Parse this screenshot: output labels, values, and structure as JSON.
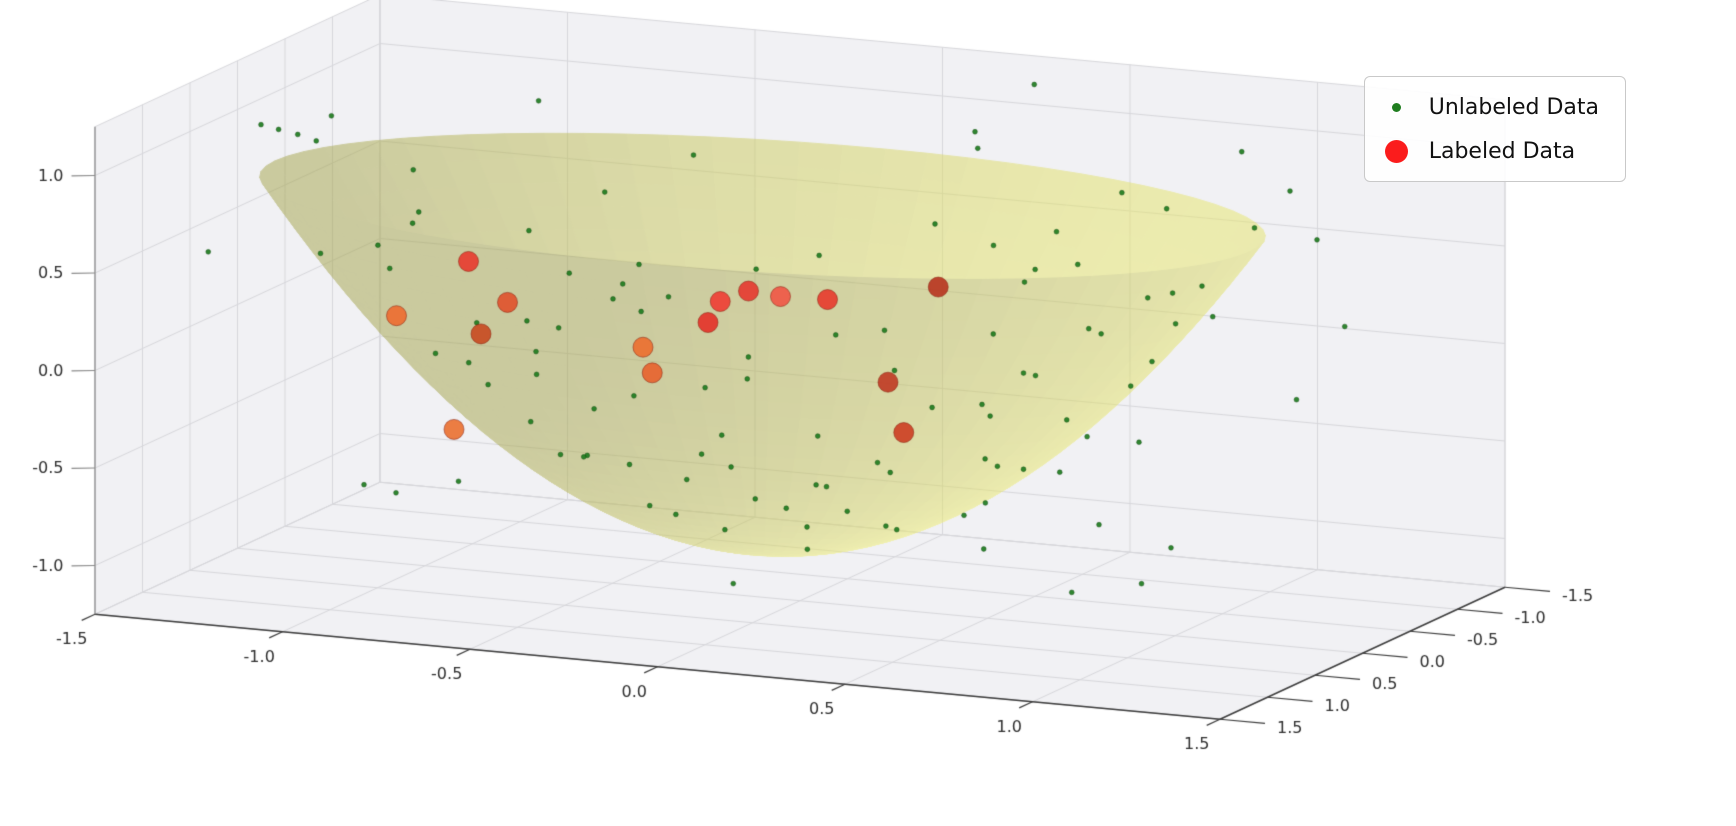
{
  "figure": {
    "background": "#ffffff",
    "pane_color": "#f1f1f4",
    "grid_color": "#d7d7db",
    "spine_color": "#3c3c3c",
    "tick_color": "#2e2e2e"
  },
  "legend": {
    "position": "upper right",
    "entries": [
      {
        "label": "Unlabeled Data",
        "color": "#1f7d1f",
        "marker": "small-dot"
      },
      {
        "label": "Labeled Data",
        "color": "#fb1c1c",
        "marker": "large-dot"
      }
    ]
  },
  "chart_data": {
    "type": "scatter",
    "projection": "3d",
    "title": "",
    "axes": {
      "x": {
        "range": [
          -1.5,
          1.5
        ],
        "ticks": [
          -1.5,
          -1.0,
          -0.5,
          0.0,
          0.5,
          1.0,
          1.5
        ]
      },
      "y": {
        "range": [
          -1.5,
          1.5
        ],
        "ticks": [
          -1.5,
          -1.0,
          -0.5,
          0.0,
          0.5,
          1.0,
          1.5
        ]
      },
      "z": {
        "range": [
          -1.25,
          1.25
        ],
        "ticks": [
          -1.0,
          -0.5,
          0.0,
          0.5,
          1.0
        ]
      }
    },
    "surface": {
      "type": "paraboloid",
      "formula": "z = a*((x-cx)^2+(y-cy)^2) + c",
      "a": 1.05,
      "c": -1.02,
      "cx": -0.1,
      "cy": 0.0,
      "radius": 1.3,
      "color": "#e3e26e",
      "opacity": 0.52
    },
    "series": [
      {
        "name": "Unlabeled Data",
        "marker": {
          "color": "#1f7d1f",
          "size": "small"
        },
        "points": [
          [
            0.05,
            0.12,
            -0.95
          ],
          [
            -0.18,
            0.08,
            -0.9
          ],
          [
            0.22,
            -0.15,
            -0.88
          ],
          [
            -0.1,
            -0.25,
            -0.85
          ],
          [
            0.3,
            0.28,
            -0.75
          ],
          [
            -0.35,
            0.2,
            -0.78
          ],
          [
            0.12,
            0.4,
            -0.76
          ],
          [
            -0.28,
            -0.38,
            -0.7
          ],
          [
            0.45,
            0.05,
            -0.72
          ],
          [
            -0.48,
            -0.1,
            -0.66
          ],
          [
            0.08,
            -0.5,
            -0.64
          ],
          [
            0.52,
            -0.3,
            -0.55
          ],
          [
            -0.55,
            0.35,
            -0.52
          ],
          [
            0.38,
            0.55,
            -0.4
          ],
          [
            -0.15,
            0.6,
            -0.52
          ],
          [
            -0.62,
            -0.28,
            -0.44
          ],
          [
            0.6,
            0.42,
            -0.32
          ],
          [
            -0.4,
            -0.58,
            -0.36
          ],
          [
            0.18,
            -0.68,
            -0.38
          ],
          [
            -0.68,
            0.15,
            -0.42
          ],
          [
            0.72,
            -0.18,
            -0.32
          ],
          [
            -0.75,
            -0.42,
            -0.08
          ],
          [
            0.65,
            0.65,
            0.02
          ],
          [
            -0.52,
            0.72,
            -0.02
          ],
          [
            0.8,
            0.35,
            -0.1
          ],
          [
            -0.82,
            0.25,
            -0.12
          ],
          [
            0.3,
            -0.85,
            -0.02
          ],
          [
            -0.22,
            0.88,
            -0.04
          ],
          [
            0.88,
            -0.48,
            0.22
          ],
          [
            -0.9,
            -0.15,
            -0.02
          ],
          [
            0.58,
            -0.75,
            0.08
          ],
          [
            -0.65,
            -0.7,
            0.1
          ],
          [
            0.92,
            0.15,
            0.05
          ],
          [
            -0.35,
            -0.92,
            0.18
          ],
          [
            0.1,
            0.95,
            0.12
          ],
          [
            0.95,
            0.58,
            0.42
          ],
          [
            -0.98,
            0.45,
            0.38
          ],
          [
            0.48,
            0.9,
            0.22
          ],
          [
            -0.88,
            -0.62,
            0.35
          ],
          [
            0.75,
            -0.7,
            0.28
          ],
          [
            1.05,
            -0.2,
            0.35
          ],
          [
            -1.08,
            0.18,
            0.42
          ],
          [
            0.25,
            -1.05,
            0.38
          ],
          [
            -0.15,
            1.08,
            0.45
          ],
          [
            1.1,
            0.42,
            0.62
          ],
          [
            -1.12,
            -0.35,
            0.68
          ],
          [
            0.85,
            0.88,
            0.8
          ],
          [
            -0.8,
            0.92,
            0.75
          ],
          [
            0.6,
            -1.02,
            0.72
          ],
          [
            -0.55,
            -1.05,
            0.7
          ],
          [
            1.18,
            -0.5,
            0.95
          ],
          [
            -1.2,
            0.55,
            1.05
          ],
          [
            0.35,
            1.18,
            0.85
          ],
          [
            1.25,
            0.15,
            0.92
          ],
          [
            -1.28,
            -0.12,
            0.98
          ],
          [
            0.95,
            -0.9,
            1.02
          ],
          [
            -0.92,
            -0.88,
            0.95
          ],
          [
            1.15,
            0.68,
            1.12
          ],
          [
            -1.1,
            0.75,
            1.08
          ],
          [
            0.15,
            -1.25,
            0.9
          ],
          [
            0.02,
            0.55,
            -0.6
          ],
          [
            -0.08,
            0.72,
            -0.35
          ],
          [
            0.2,
            0.62,
            -0.48
          ],
          [
            0.42,
            -0.42,
            -0.58
          ],
          [
            -0.45,
            0.5,
            -0.48
          ],
          [
            0.55,
            0.22,
            -0.6
          ],
          [
            -0.58,
            -0.05,
            -0.62
          ],
          [
            0.05,
            -0.3,
            -0.85
          ],
          [
            -0.25,
            0.32,
            -0.78
          ],
          [
            0.35,
            -0.62,
            -0.38
          ],
          [
            -0.32,
            -0.72,
            -0.22
          ],
          [
            0.68,
            -0.05,
            -0.48
          ],
          [
            -0.7,
            0.52,
            -0.15
          ],
          [
            0.25,
            0.8,
            -0.18
          ],
          [
            -0.12,
            -0.85,
            -0.1
          ],
          [
            0.78,
            0.6,
            0.18
          ],
          [
            -0.78,
            -0.3,
            -0.18
          ],
          [
            0.5,
            -0.95,
            0.35
          ],
          [
            -0.48,
            0.98,
            0.32
          ],
          [
            0.85,
            -0.35,
            0.05
          ],
          [
            -1.45,
            -0.05,
            0.92
          ],
          [
            -1.36,
            0.12,
            0.95
          ],
          [
            0.27,
            -1.4,
            1.13
          ],
          [
            0.17,
            -1.2,
            0.83
          ],
          [
            0.9,
            1.2,
            0.35
          ],
          [
            -1.0,
            1.1,
            0.6
          ],
          [
            1.3,
            0.9,
            0.8
          ],
          [
            0.7,
            0.4,
            0.6
          ],
          [
            -0.3,
            0.2,
            0.3
          ],
          [
            0.2,
            -0.1,
            0.15
          ],
          [
            -0.6,
            -0.4,
            0.1
          ],
          [
            1.0,
            0.8,
            -0.5
          ],
          [
            -0.9,
            0.7,
            -0.7
          ],
          [
            0.4,
            1.3,
            -0.3
          ],
          [
            -1.2,
            -0.9,
            -0.4
          ],
          [
            0.6,
            -1.2,
            -0.6
          ],
          [
            1.25,
            -0.8,
            0.2
          ],
          [
            -0.1,
            1.3,
            0.75
          ],
          [
            0.05,
            0.9,
            -0.95
          ],
          [
            -1.35,
            0.9,
            0.5
          ],
          [
            1.1,
            -1.1,
            0.55
          ],
          [
            0.75,
            0.1,
            -1.05
          ],
          [
            -0.5,
            -1.15,
            -0.75
          ],
          [
            1.4,
            0.3,
            0.1
          ],
          [
            -0.7,
            1.25,
            0.9
          ],
          [
            0.3,
            -0.75,
            -1.1
          ],
          [
            -1.15,
            0.05,
            -0.85
          ],
          [
            0.95,
            1.05,
            1.05
          ],
          [
            -0.85,
            -1.3,
            0.4
          ],
          [
            0.55,
            0.75,
            0.95
          ],
          [
            -0.4,
            0.85,
            0.55
          ],
          [
            1.05,
            0.55,
            -0.85
          ],
          [
            -1.05,
            -0.55,
            -0.95
          ],
          [
            0.85,
            -0.55,
            -0.95
          ]
        ]
      },
      {
        "name": "Labeled Data",
        "marker": {
          "size": "large"
        },
        "points": [
          {
            "xyz": [
              -0.96,
              -0.3,
              0.25
            ],
            "color": "#e83a2e"
          },
          {
            "xyz": [
              -1.0,
              0.3,
              0.1
            ],
            "color": "#ed6b2f"
          },
          {
            "xyz": [
              -0.78,
              0.0,
              0.14
            ],
            "color": "#e0512b"
          },
          {
            "xyz": [
              -0.8,
              0.2,
              0.02
            ],
            "color": "#c8491f"
          },
          {
            "xyz": [
              -0.72,
              0.8,
              -0.32
            ],
            "color": "#ea7030"
          },
          {
            "xyz": [
              -0.33,
              0.35,
              0.07
            ],
            "color": "#ec6e2e"
          },
          {
            "xyz": [
              -0.28,
              0.45,
              -0.03
            ],
            "color": "#e8622c"
          },
          {
            "xyz": [
              -0.22,
              0.1,
              0.16
            ],
            "color": "#e43128"
          },
          {
            "xyz": [
              -0.2,
              0.05,
              0.26
            ],
            "color": "#ef3d33"
          },
          {
            "xyz": [
              -0.15,
              -0.05,
              0.3
            ],
            "color": "#e6392f"
          },
          {
            "xyz": [
              -0.09,
              -0.15,
              0.26
            ],
            "color": "#f05545"
          },
          {
            "xyz": [
              0.01,
              -0.25,
              0.24
            ],
            "color": "#e73a2c"
          },
          {
            "xyz": [
              0.26,
              0.1,
              -0.06
            ],
            "color": "#c03a24"
          },
          {
            "xyz": [
              0.34,
              0.25,
              -0.27
            ],
            "color": "#cc3d22"
          },
          {
            "xyz": [
              0.28,
              -0.35,
              0.33
            ],
            "color": "#b8341f"
          }
        ]
      }
    ]
  }
}
